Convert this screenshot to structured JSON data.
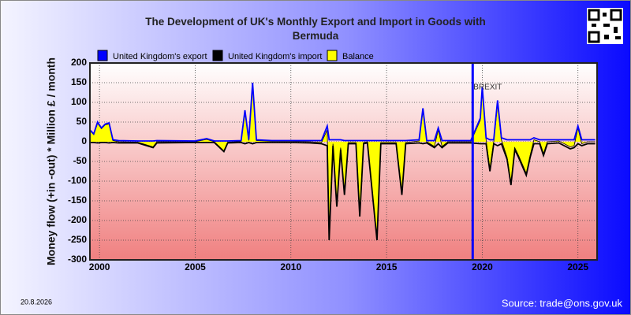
{
  "chart_data": {
    "type": "line",
    "title": "The Development of UK's Monthly Export and Import in Goods with Bermuda",
    "y_label": "Money flow (+in -out) * Million £ / month",
    "date": "20.8.2026",
    "source": "Source: trade@ons.gov.uk",
    "xlim": [
      1999.5,
      2026
    ],
    "xticks": [
      2000,
      2005,
      2010,
      2015,
      2020,
      2025
    ],
    "ylim": [
      -300,
      200
    ],
    "yticks": [
      -300,
      -250,
      -200,
      -150,
      -100,
      -50,
      0,
      50,
      100,
      150,
      200
    ],
    "grid": true,
    "annotations": [
      {
        "text": "BREXIT",
        "x": 2019.5,
        "color": "#0000ff"
      }
    ],
    "x": [
      1999.5,
      1999.7,
      1999.9,
      2000.1,
      2000.3,
      2000.5,
      2000.7,
      2001.0,
      2002.0,
      2002.8,
      2003.0,
      2005.0,
      2005.6,
      2006.0,
      2006.5,
      2006.7,
      2007.4,
      2007.6,
      2007.8,
      2008.0,
      2008.2,
      2009.0,
      2010.0,
      2011.0,
      2011.6,
      2011.9,
      2012.0,
      2012.2,
      2012.4,
      2012.6,
      2012.8,
      2013.0,
      2013.4,
      2013.6,
      2013.8,
      2014.0,
      2014.5,
      2014.7,
      2015.5,
      2015.8,
      2016.0,
      2016.7,
      2016.9,
      2017.1,
      2017.5,
      2017.7,
      2017.9,
      2018.2,
      2019.4,
      2019.9,
      2020.0,
      2020.2,
      2020.4,
      2020.6,
      2020.8,
      2021.0,
      2021.3,
      2021.5,
      2021.7,
      2021.9,
      2022.3,
      2022.5,
      2022.7,
      2023.0,
      2023.2,
      2023.4,
      2024.0,
      2024.6,
      2024.8,
      2025.0,
      2025.2,
      2025.5,
      2025.9
    ],
    "series": [
      {
        "name": "United Kingdom's export",
        "color": "#0000ff",
        "role": "line",
        "values": [
          30,
          20,
          50,
          35,
          45,
          48,
          5,
          3,
          2,
          2,
          3,
          2,
          8,
          2,
          2,
          2,
          3,
          80,
          5,
          150,
          5,
          3,
          3,
          3,
          3,
          40,
          5,
          5,
          5,
          5,
          3,
          3,
          3,
          3,
          3,
          3,
          3,
          3,
          3,
          3,
          3,
          5,
          85,
          3,
          3,
          35,
          3,
          3,
          3,
          60,
          140,
          10,
          5,
          5,
          105,
          10,
          5,
          5,
          5,
          5,
          5,
          5,
          10,
          5,
          5,
          5,
          5,
          5,
          5,
          40,
          5,
          5,
          5
        ]
      },
      {
        "name": "United Kingdom's import",
        "color": "#000000",
        "role": "line",
        "values": [
          -2,
          -2,
          -3,
          -2,
          -2,
          -3,
          -2,
          -3,
          -3,
          -15,
          -3,
          -2,
          -2,
          -2,
          -25,
          -3,
          -2,
          -5,
          -2,
          -5,
          -2,
          -2,
          -2,
          -3,
          -5,
          -10,
          -250,
          -10,
          -165,
          -20,
          -135,
          -5,
          -5,
          -190,
          -5,
          -3,
          -250,
          -5,
          -5,
          -135,
          -5,
          -3,
          -5,
          -3,
          -15,
          -5,
          -15,
          -3,
          -3,
          -5,
          -5,
          -5,
          -75,
          -5,
          -10,
          -5,
          -45,
          -110,
          -20,
          -40,
          -85,
          -40,
          -5,
          -5,
          -35,
          -5,
          -3,
          -18,
          -15,
          -5,
          -10,
          -5,
          -5
        ]
      },
      {
        "name": "Balance",
        "color": "#ffff00",
        "role": "area",
        "values": [
          28,
          18,
          47,
          33,
          43,
          45,
          3,
          0,
          -1,
          -13,
          0,
          0,
          6,
          0,
          -23,
          -1,
          1,
          75,
          3,
          145,
          3,
          1,
          1,
          0,
          -2,
          30,
          -245,
          -5,
          -160,
          -15,
          -132,
          -2,
          -2,
          -187,
          -2,
          0,
          -247,
          -2,
          -2,
          -132,
          -2,
          2,
          80,
          0,
          -12,
          30,
          -12,
          0,
          0,
          55,
          135,
          5,
          -70,
          0,
          95,
          5,
          -40,
          -105,
          -15,
          -35,
          -80,
          -35,
          5,
          0,
          -30,
          0,
          2,
          -13,
          -10,
          35,
          -5,
          0,
          0
        ]
      }
    ]
  }
}
